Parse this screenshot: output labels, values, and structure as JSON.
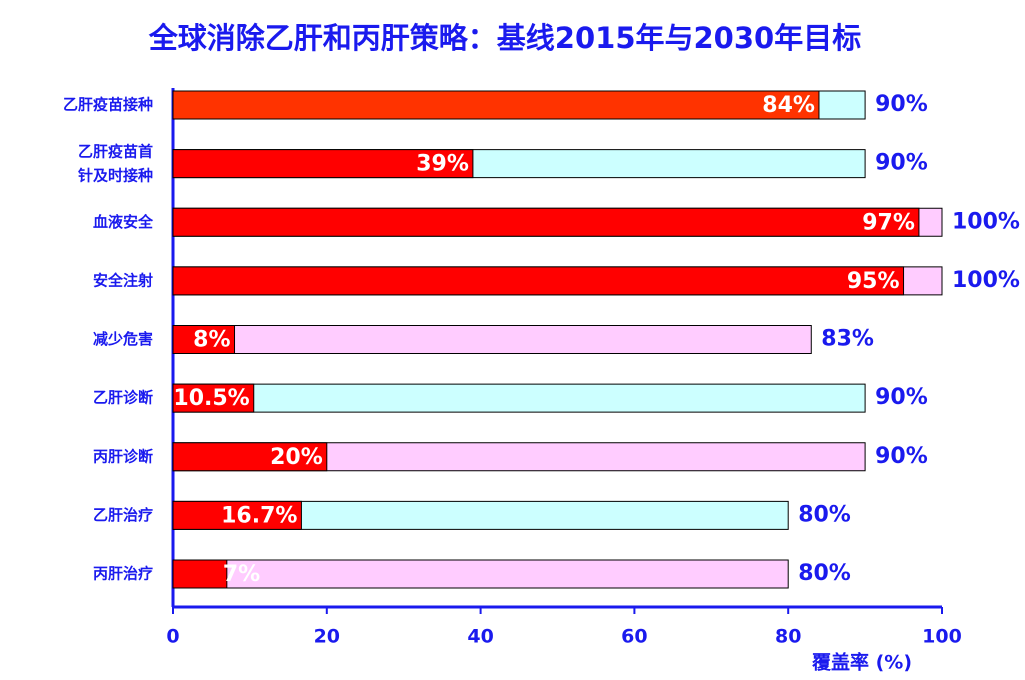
{
  "chart_data": {
    "type": "bar",
    "orientation": "horizontal",
    "title": "全球消除乙肝和丙肝策略：基线2015年与2030年目标",
    "x_label": "覆盖率 (%)",
    "categories": [
      "乙肝疫苗接种",
      "乙肝疫苗首\n针及时接种",
      "血液安全",
      "安全注射",
      "减少危害",
      "乙肝诊断",
      "丙肝诊断",
      "乙肝治疗",
      "丙肝治疗"
    ],
    "series": [
      {
        "values": [
          90,
          90,
          100,
          100,
          83,
          90,
          90,
          80,
          80
        ],
        "value_labels": [
          "90%",
          "90%",
          "100%",
          "100%",
          "83%",
          "90%",
          "90%",
          "80%",
          "80%"
        ],
        "colors": [
          "#ccffff",
          "#ccffff",
          "#ffccff",
          "#ffccff",
          "#ffccff",
          "#ccffff",
          "#ffccff",
          "#ccffff",
          "#ffccff"
        ]
      },
      {
        "values": [
          84,
          39,
          97,
          95,
          8,
          10.5,
          20,
          16.7,
          7
        ],
        "value_labels": [
          "84%",
          "39%",
          "97%",
          "95%",
          "8%",
          "10.5%",
          "20%",
          "16.7%",
          "7%"
        ],
        "colors": [
          "#ff3300",
          "#ff0000",
          "#ff0000",
          "#ff0000",
          "#ff0000",
          "#ff0000",
          "#ff0000",
          "#ff0000",
          "#ff0000"
        ]
      }
    ],
    "xlim": [
      0,
      100
    ],
    "xticks": [
      0,
      20,
      40,
      60,
      80,
      100
    ]
  }
}
